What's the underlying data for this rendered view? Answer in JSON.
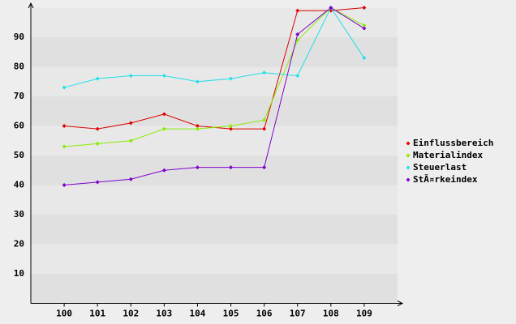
{
  "chart_data": {
    "type": "line",
    "x": [
      100,
      101,
      102,
      103,
      104,
      105,
      106,
      107,
      108,
      109
    ],
    "xlim": [
      99,
      110
    ],
    "xticks": [
      100,
      101,
      102,
      103,
      104,
      105,
      106,
      107,
      108,
      109
    ],
    "ylim": [
      0,
      100
    ],
    "yticks": [
      10,
      20,
      30,
      40,
      50,
      60,
      70,
      80,
      90
    ],
    "grid": true,
    "legend": "right",
    "series": [
      {
        "name": "Einflussbereich",
        "color": "#e00000",
        "values": [
          60,
          59,
          61,
          64,
          60,
          59,
          59,
          99,
          99,
          100
        ]
      },
      {
        "name": "Materialindex",
        "color": "#88ee00",
        "values": [
          53,
          54,
          55,
          59,
          59,
          60,
          62,
          89,
          100,
          94
        ]
      },
      {
        "name": "Steuerlast",
        "color": "#22e0e8",
        "values": [
          73,
          76,
          77,
          77,
          75,
          76,
          78,
          77,
          100,
          83
        ]
      },
      {
        "name": "StÃ¤rkeindex",
        "color": "#8000d0",
        "values": [
          40,
          41,
          42,
          45,
          46,
          46,
          46,
          91,
          100,
          93
        ]
      }
    ]
  }
}
